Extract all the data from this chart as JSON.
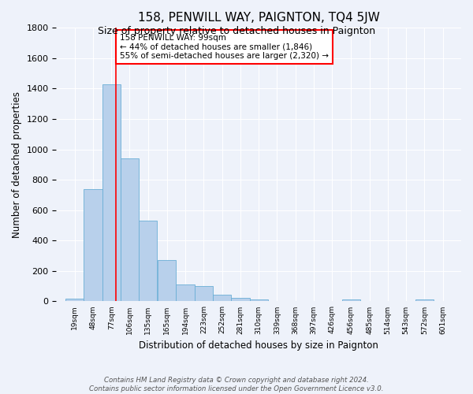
{
  "title": "158, PENWILL WAY, PAIGNTON, TQ4 5JW",
  "subtitle": "Size of property relative to detached houses in Paignton",
  "xlabel": "Distribution of detached houses by size in Paignton",
  "ylabel": "Number of detached properties",
  "bar_values": [
    20,
    740,
    1430,
    940,
    530,
    270,
    110,
    100,
    45,
    25,
    15,
    0,
    0,
    0,
    0,
    15,
    0,
    0,
    0,
    15
  ],
  "bin_labels": [
    "19sqm",
    "48sqm",
    "77sqm",
    "106sqm",
    "135sqm",
    "165sqm",
    "194sqm",
    "223sqm",
    "252sqm",
    "281sqm",
    "310sqm",
    "339sqm",
    "368sqm",
    "397sqm",
    "426sqm",
    "456sqm",
    "485sqm",
    "514sqm",
    "543sqm",
    "572sqm",
    "601sqm"
  ],
  "bin_edges": [
    19,
    48,
    77,
    106,
    135,
    165,
    194,
    223,
    252,
    281,
    310,
    339,
    368,
    397,
    426,
    456,
    485,
    514,
    543,
    572,
    601
  ],
  "bar_color": "#b8d0eb",
  "bar_edge_color": "#6aaed6",
  "red_line_x": 99,
  "ylim": [
    0,
    1800
  ],
  "annotation_text": "158 PENWILL WAY: 99sqm\n← 44% of detached houses are smaller (1,846)\n55% of semi-detached houses are larger (2,320) →",
  "annotation_box_color": "white",
  "annotation_box_edge_color": "red",
  "footer_text": "Contains HM Land Registry data © Crown copyright and database right 2024.\nContains public sector information licensed under the Open Government Licence v3.0.",
  "background_color": "#eef2fa"
}
